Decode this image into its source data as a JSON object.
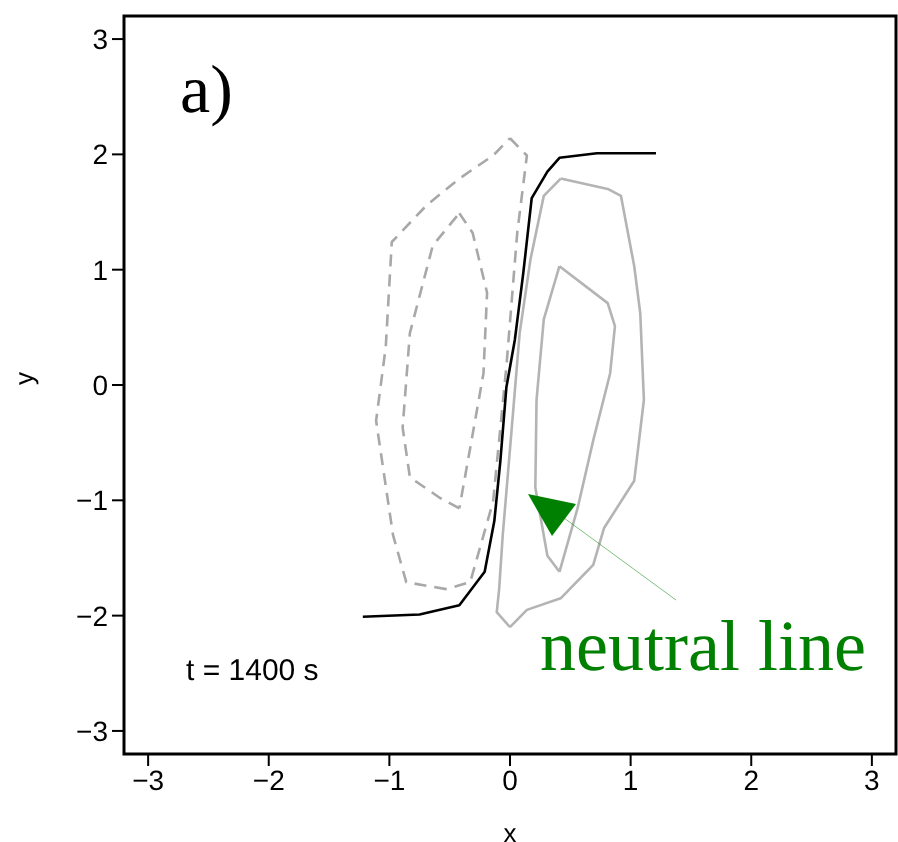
{
  "chart_data": {
    "type": "line",
    "xlabel": "x",
    "ylabel": "y",
    "annotations": [
      "a)",
      "t = 1400 s",
      "neutral line"
    ],
    "xlim": [
      -3.2,
      3.2
    ],
    "ylim": [
      -3.2,
      3.2
    ],
    "xticks": [
      -3,
      -2,
      -1,
      0,
      1,
      2,
      3
    ],
    "yticks": [
      -3,
      -2,
      -1,
      0,
      1,
      2,
      3
    ],
    "grid": false,
    "marker": "none",
    "series": [
      {
        "color": "#a8a8a8",
        "line_style": "dashed",
        "x": [
          0.0,
          0.14,
          0.06,
          -0.03,
          -0.14,
          -0.33,
          -0.53
        ],
        "values": [
          2.14,
          1.99,
          1.32,
          0.16,
          -1.01,
          -1.71,
          -1.77
        ]
      },
      {
        "color": "#a8a8a8",
        "line_style": "dashed",
        "x": [
          -0.53,
          -0.86,
          -0.97,
          -1.11,
          -1.03,
          -0.98,
          -0.69,
          -0.42,
          -0.14,
          0.0
        ],
        "values": [
          -1.77,
          -1.71,
          -1.3,
          -0.31,
          0.33,
          1.24,
          1.56,
          1.79,
          1.99,
          2.14
        ]
      },
      {
        "color": "#a8a8a8",
        "line_style": "dashed",
        "x": [
          -0.42,
          -0.31,
          -0.19,
          -0.22,
          -0.31,
          -0.42
        ],
        "values": [
          1.49,
          1.32,
          0.8,
          0.1,
          -0.43,
          -1.07
        ]
      },
      {
        "color": "#a8a8a8",
        "line_style": "dashed",
        "x": [
          -0.42,
          -0.58,
          -0.83,
          -0.89,
          -0.83,
          -0.64,
          -0.42
        ],
        "values": [
          -1.07,
          -0.98,
          -0.8,
          -0.37,
          0.45,
          1.21,
          1.49
        ]
      },
      {
        "color": "#b4b4b4",
        "line_style": "solid",
        "x": [
          0.0,
          0.14,
          0.42,
          0.69,
          0.78,
          1.03,
          1.11,
          1.08,
          1.03,
          0.92,
          0.81,
          0.42
        ],
        "values": [
          -2.1,
          -1.95,
          -1.85,
          -1.56,
          -1.24,
          -0.83,
          -0.13,
          0.62,
          1.03,
          1.64,
          1.7,
          1.79
        ]
      },
      {
        "color": "#b4b4b4",
        "line_style": "solid",
        "x": [
          0.42,
          0.28,
          0.17,
          0.08,
          0.01,
          -0.06,
          -0.09,
          -0.11,
          0.0
        ],
        "values": [
          1.79,
          1.64,
          1.09,
          0.45,
          -0.43,
          -1.3,
          -1.77,
          -1.97,
          -2.1
        ]
      },
      {
        "color": "#b4b4b4",
        "line_style": "solid",
        "x": [
          0.41,
          0.81,
          0.87,
          0.83,
          0.69,
          0.56,
          0.41
        ],
        "values": [
          1.03,
          0.71,
          0.51,
          0.1,
          -0.48,
          -1.07,
          -1.62
        ]
      },
      {
        "color": "#b4b4b4",
        "line_style": "solid",
        "x": [
          0.41,
          0.31,
          0.21,
          0.22,
          0.28,
          0.41
        ],
        "values": [
          -1.62,
          -1.48,
          -0.89,
          -0.13,
          0.57,
          1.03
        ]
      },
      {
        "color": "#000000",
        "line_style": "solid",
        "x": [
          -1.22,
          -0.75,
          -0.42,
          -0.21,
          -0.13,
          -0.08,
          -0.03,
          0.04,
          0.11,
          0.18,
          0.31,
          0.41,
          0.72,
          1.21
        ],
        "values": [
          -2.01,
          -1.99,
          -1.91,
          -1.62,
          -1.18,
          -0.66,
          -0.02,
          0.39,
          0.97,
          1.62,
          1.85,
          1.97,
          2.01,
          2.01
        ]
      }
    ]
  }
}
